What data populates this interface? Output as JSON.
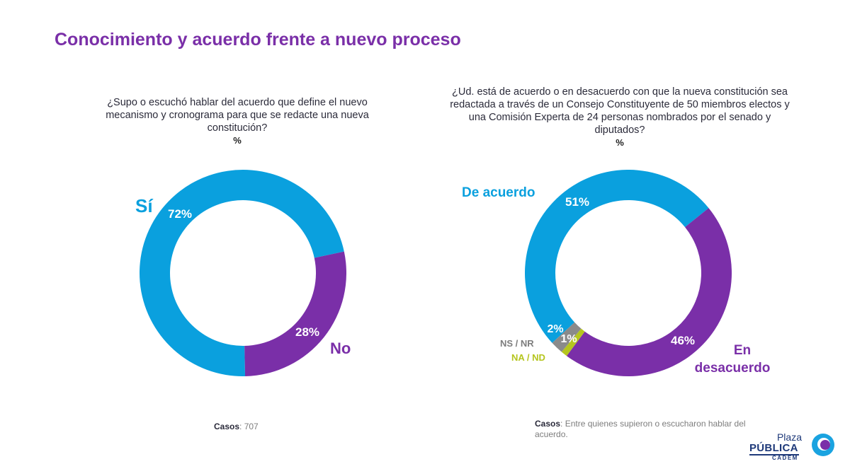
{
  "title": "Conocimiento y acuerdo frente a nuevo proceso",
  "colors": {
    "blue": "#0aa0de",
    "purple": "#7a2fa8",
    "gray": "#8a8a8a",
    "lime": "#b5c51e"
  },
  "chart_data": [
    {
      "type": "pie",
      "question": "¿Supo o escuchó hablar del acuerdo que define el nuevo mecanismo y cronograma para que se redacte una nueva constitución?",
      "unit": "%",
      "categories": [
        "Sí",
        "No"
      ],
      "values": [
        72,
        28
      ],
      "value_labels": [
        "72%",
        "28%"
      ],
      "colors": [
        "#0aa0de",
        "#7a2fa8"
      ],
      "cases_label": "Casos",
      "cases_text": ": 707"
    },
    {
      "type": "pie",
      "question": "¿Ud. está de acuerdo o en desacuerdo con que la nueva constitución sea redactada a través de un Consejo Constituyente de 50 miembros electos y una Comisión Experta de 24 personas nombrados por el senado y diputados?",
      "unit": "%",
      "categories": [
        "De acuerdo",
        "En desacuerdo",
        "NA / ND",
        "NS / NR"
      ],
      "values": [
        51,
        46,
        1,
        2
      ],
      "value_labels": [
        "51%",
        "46%",
        "1%",
        "2%"
      ],
      "colors": [
        "#0aa0de",
        "#7a2fa8",
        "#b5c51e",
        "#8a8a8a"
      ],
      "cases_label": "Casos",
      "cases_text": ": Entre quienes supieron o escucharon hablar del acuerdo."
    }
  ],
  "logo": {
    "line1": "Plaza",
    "line2": "PÚBLICA",
    "line3": "CADEM"
  }
}
